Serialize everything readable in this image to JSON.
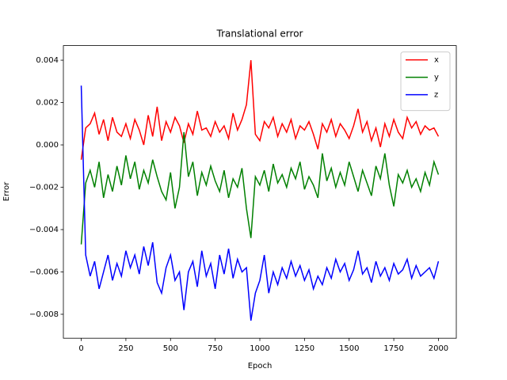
{
  "chart_data": {
    "type": "line",
    "title": "Translational error",
    "x_label": "Epoch",
    "y_label": "Error",
    "x": [
      0,
      25,
      50,
      75,
      100,
      125,
      150,
      175,
      200,
      225,
      250,
      275,
      300,
      325,
      350,
      375,
      400,
      425,
      450,
      475,
      500,
      525,
      550,
      575,
      600,
      625,
      650,
      675,
      700,
      725,
      750,
      775,
      800,
      825,
      850,
      875,
      900,
      925,
      950,
      975,
      1000,
      1025,
      1050,
      1075,
      1100,
      1125,
      1150,
      1175,
      1200,
      1225,
      1250,
      1275,
      1300,
      1325,
      1350,
      1375,
      1400,
      1425,
      1450,
      1475,
      1500,
      1525,
      1550,
      1575,
      1600,
      1625,
      1650,
      1675,
      1700,
      1725,
      1750,
      1775,
      1800,
      1825,
      1850,
      1875,
      1900,
      1925,
      1950,
      1975,
      2000
    ],
    "series": [
      {
        "name": "x",
        "color": "#ff0000",
        "values": [
          -0.0007,
          0.0008,
          0.001,
          0.0015,
          0.0005,
          0.0012,
          0.0002,
          0.0013,
          0.0006,
          0.0004,
          0.001,
          0.0003,
          0.0012,
          0.0007,
          0.0,
          0.0014,
          0.0004,
          0.0018,
          0.0002,
          0.0011,
          0.0006,
          0.0013,
          0.0009,
          0.0001,
          0.001,
          0.0005,
          0.0016,
          0.0007,
          0.0008,
          0.0004,
          0.0011,
          0.0006,
          0.0009,
          0.0003,
          0.0015,
          0.0007,
          0.0012,
          0.0019,
          0.004,
          0.0005,
          0.0002,
          0.0011,
          0.0008,
          0.0013,
          0.0004,
          0.001,
          0.0006,
          0.0012,
          0.0003,
          0.0009,
          0.0007,
          0.0011,
          0.0005,
          -0.0002,
          0.001,
          0.0006,
          0.0012,
          0.0004,
          0.001,
          0.0007,
          0.0003,
          0.0009,
          0.0017,
          0.0006,
          0.0011,
          0.0002,
          0.0008,
          -0.0001,
          0.001,
          0.0004,
          0.0012,
          0.0006,
          0.0003,
          0.0013,
          0.0008,
          0.0011,
          0.0005,
          0.0009,
          0.0007,
          0.0008,
          0.0004
        ]
      },
      {
        "name": "y",
        "color": "#008000",
        "values": [
          -0.0047,
          -0.0018,
          -0.0012,
          -0.002,
          -0.0008,
          -0.0025,
          -0.0014,
          -0.0022,
          -0.001,
          -0.0019,
          -0.0005,
          -0.0016,
          -0.0008,
          -0.0021,
          -0.0012,
          -0.0018,
          -0.0007,
          -0.0015,
          -0.0022,
          -0.0026,
          -0.0013,
          -0.003,
          -0.002,
          0.0006,
          -0.0015,
          -0.0008,
          -0.0024,
          -0.0013,
          -0.0019,
          -0.001,
          -0.0017,
          -0.0022,
          -0.0012,
          -0.0025,
          -0.0016,
          -0.002,
          -0.0011,
          -0.003,
          -0.0044,
          -0.0015,
          -0.0019,
          -0.0012,
          -0.0022,
          -0.0009,
          -0.0018,
          -0.0014,
          -0.002,
          -0.0011,
          -0.0016,
          -0.0008,
          -0.0021,
          -0.0015,
          -0.0019,
          -0.0025,
          -0.0004,
          -0.0017,
          -0.0011,
          -0.002,
          -0.0013,
          -0.0019,
          -0.0008,
          -0.0015,
          -0.0022,
          -0.0012,
          -0.0018,
          -0.0024,
          -0.001,
          -0.0016,
          -0.0004,
          -0.0019,
          -0.0029,
          -0.0014,
          -0.0018,
          -0.0012,
          -0.002,
          -0.0016,
          -0.0022,
          -0.0013,
          -0.0019,
          -0.0008,
          -0.0014
        ]
      },
      {
        "name": "z",
        "color": "#0000ff",
        "values": [
          0.0028,
          -0.0052,
          -0.0062,
          -0.0055,
          -0.0068,
          -0.006,
          -0.0052,
          -0.0064,
          -0.0056,
          -0.0062,
          -0.005,
          -0.0058,
          -0.0052,
          -0.0061,
          -0.0048,
          -0.0057,
          -0.0046,
          -0.0065,
          -0.007,
          -0.0058,
          -0.0052,
          -0.0064,
          -0.006,
          -0.0078,
          -0.006,
          -0.0055,
          -0.0067,
          -0.005,
          -0.0062,
          -0.0056,
          -0.0068,
          -0.0052,
          -0.0061,
          -0.0049,
          -0.0063,
          -0.0054,
          -0.006,
          -0.0058,
          -0.0083,
          -0.007,
          -0.0064,
          -0.0052,
          -0.007,
          -0.006,
          -0.0066,
          -0.0058,
          -0.0063,
          -0.0055,
          -0.0062,
          -0.0057,
          -0.0064,
          -0.0059,
          -0.0068,
          -0.0062,
          -0.0066,
          -0.0058,
          -0.0063,
          -0.0054,
          -0.006,
          -0.0056,
          -0.0064,
          -0.0059,
          -0.005,
          -0.0061,
          -0.0058,
          -0.0065,
          -0.0055,
          -0.0062,
          -0.0058,
          -0.0064,
          -0.0056,
          -0.0061,
          -0.0059,
          -0.0054,
          -0.0063,
          -0.0057,
          -0.0062,
          -0.006,
          -0.0058,
          -0.0063,
          -0.0055
        ]
      }
    ],
    "xlim": [
      -100,
      2100
    ],
    "xticks": [
      0,
      250,
      500,
      750,
      1000,
      1250,
      1500,
      1750,
      2000
    ],
    "ylim": [
      -0.00913,
      0.00469
    ],
    "yticks": [
      {
        "value": -0.008,
        "label": "−0.008"
      },
      {
        "value": -0.006,
        "label": "−0.006"
      },
      {
        "value": -0.004,
        "label": "−0.004"
      },
      {
        "value": -0.002,
        "label": "−0.002"
      },
      {
        "value": 0,
        "label": "0.000"
      },
      {
        "value": 0.002,
        "label": "0.002"
      },
      {
        "value": 0.004,
        "label": "0.004"
      }
    ],
    "grid": false,
    "legend": "upper right"
  }
}
